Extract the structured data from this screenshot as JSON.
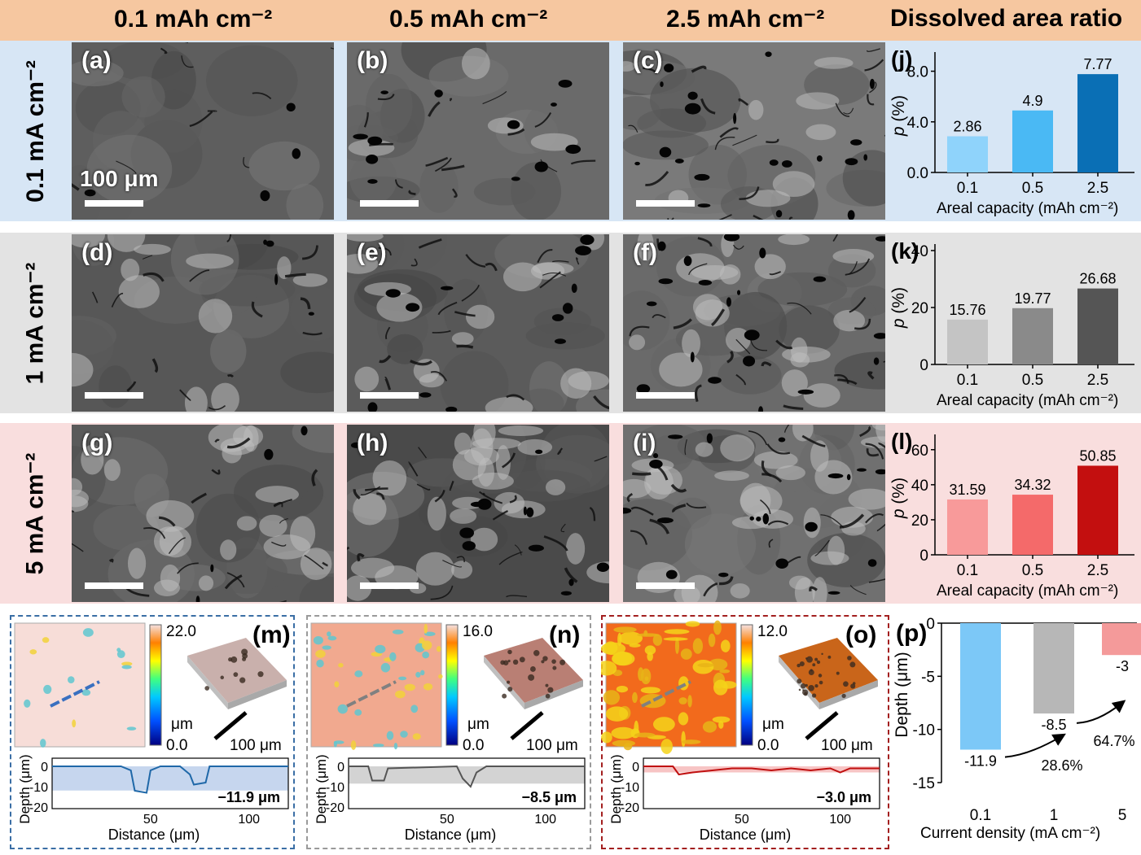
{
  "columns": [
    "0.1 mAh cm⁻²",
    "0.5 mAh cm⁻²",
    "2.5 mAh cm⁻²",
    "Dissolved area ratio"
  ],
  "rows": [
    "0.1 mA cm⁻²",
    "1 mA cm⁻²",
    "5 mA cm⁻²"
  ],
  "colors": {
    "header": "#f6c7a0",
    "row1": "#d7e6f5",
    "row2": "#e3e3e3",
    "row3": "#f9dede"
  },
  "panels": [
    "(a)",
    "(b)",
    "(c)",
    "(d)",
    "(e)",
    "(f)",
    "(g)",
    "(h)",
    "(i)",
    "(j)",
    "(k)",
    "(l)",
    "(m)",
    "(n)",
    "(o)",
    "(p)"
  ],
  "scalebar_label": "100 μm",
  "profile_panels": [
    {
      "max": "22.0",
      "min": "0.0",
      "unit": "μm",
      "scale": "100 μm",
      "depth": "−11.9 μm",
      "color": "#3a6ea5"
    },
    {
      "max": "16.0",
      "min": "0.0",
      "unit": "μm",
      "scale": "100 μm",
      "depth": "−8.5 μm",
      "color": "#9a9a9a"
    },
    {
      "max": "12.0",
      "min": "0.0",
      "unit": "μm",
      "scale": "100 μm",
      "depth": "−3.0 μm",
      "color": "#a31f1f"
    }
  ],
  "profile_axes": {
    "ylabel": "Depth (μm)",
    "xlabel": "Distance (μm)",
    "yticks": [
      "0",
      "-10",
      "-20"
    ],
    "xticks": [
      "50",
      "100"
    ]
  },
  "chart_data": [
    {
      "type": "bar",
      "panel": "(j)",
      "categories": [
        "0.1",
        "0.5",
        "2.5"
      ],
      "values": [
        2.86,
        4.9,
        7.77
      ],
      "labels": [
        "2.86",
        "4.9",
        "7.77"
      ],
      "ylabel": "p (%)",
      "xlabel": "Areal capacity (mAh cm⁻²)",
      "ylim": [
        0,
        9
      ],
      "yticks": [
        "0.0",
        "4.0",
        "8.0"
      ],
      "colors": [
        "#8fd3fb",
        "#4ab9f4",
        "#0a6fb5"
      ]
    },
    {
      "type": "bar",
      "panel": "(k)",
      "categories": [
        "0.1",
        "0.5",
        "2.5"
      ],
      "values": [
        15.76,
        19.77,
        26.68
      ],
      "labels": [
        "15.76",
        "19.77",
        "26.68"
      ],
      "ylabel": "p (%)",
      "xlabel": "Areal capacity (mAh cm⁻²)",
      "ylim": [
        0,
        40
      ],
      "yticks": [
        "0",
        "20",
        "40"
      ],
      "colors": [
        "#c4c4c4",
        "#8a8a8a",
        "#555555"
      ]
    },
    {
      "type": "bar",
      "panel": "(l)",
      "categories": [
        "0.1",
        "0.5",
        "2.5"
      ],
      "values": [
        31.59,
        34.32,
        50.85
      ],
      "labels": [
        "31.59",
        "34.32",
        "50.85"
      ],
      "ylabel": "p (%)",
      "xlabel": "Areal capacity (mAh cm⁻²)",
      "ylim": [
        0,
        65
      ],
      "yticks": [
        "0",
        "20",
        "40",
        "60"
      ],
      "colors": [
        "#f89a9a",
        "#f46a6a",
        "#c30f0f"
      ]
    },
    {
      "type": "bar",
      "panel": "(p)",
      "categories": [
        "0.1",
        "1",
        "5"
      ],
      "values": [
        -11.9,
        -8.5,
        -3
      ],
      "labels": [
        "-11.9",
        "-8.5",
        "-3"
      ],
      "ylabel": "Depth (μm)",
      "xlabel": "Current density (mA cm⁻²)",
      "ylim": [
        -15,
        0
      ],
      "yticks": [
        "0",
        "-5",
        "-10",
        "-15"
      ],
      "colors": [
        "#7cc8f7",
        "#b7b7b7",
        "#f49a9a"
      ],
      "annotations": [
        "28.6%",
        "64.7%"
      ]
    }
  ]
}
